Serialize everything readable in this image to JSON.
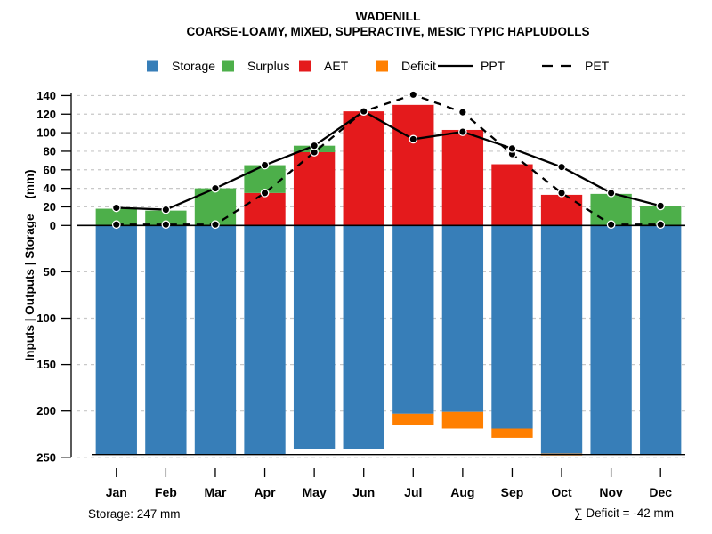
{
  "title": "WADENILL",
  "subtitle": "COARSE-LOAMY, MIXED, SUPERACTIVE, MESIC TYPIC HAPLUDOLLS",
  "y_axis": {
    "label": "Inputs | Outputs | Storage",
    "unit": "(mm)",
    "upper_ticks": [
      0,
      20,
      40,
      60,
      80,
      100,
      120,
      140
    ],
    "lower_ticks": [
      50,
      100,
      150,
      200,
      250
    ]
  },
  "legend": [
    {
      "label": "Storage",
      "swatch": "square",
      "color": "#377EB8"
    },
    {
      "label": "Surplus",
      "swatch": "square",
      "color": "#4DAF4A"
    },
    {
      "label": "AET",
      "swatch": "square",
      "color": "#E41A1C"
    },
    {
      "label": "Deficit",
      "swatch": "square",
      "color": "#FF7F00"
    },
    {
      "label": "PPT",
      "swatch": "line-solid",
      "color": "#000000"
    },
    {
      "label": "PET",
      "swatch": "line-dashed",
      "color": "#000000"
    }
  ],
  "footer": {
    "storage_note": "Storage: 247 mm",
    "deficit_note": "∑ Deficit = -42 mm"
  },
  "colors": {
    "storage": "#377EB8",
    "surplus": "#4DAF4A",
    "aet": "#E41A1C",
    "deficit": "#FF7F00",
    "line": "#000000",
    "grid": "#C8C8C8",
    "text": "#000000",
    "background": "#FFFFFF"
  },
  "chart_data": {
    "type": "bar",
    "title": "WADENILL — monthly water balance",
    "categories": [
      "Jan",
      "Feb",
      "Mar",
      "Apr",
      "May",
      "Jun",
      "Jul",
      "Aug",
      "Sep",
      "Oct",
      "Nov",
      "Dec"
    ],
    "series": [
      {
        "name": "AET",
        "role": "bar-up",
        "color": "#E41A1C",
        "values": [
          0,
          0,
          0,
          35,
          79,
          123,
          130,
          103,
          66,
          33,
          0,
          0
        ]
      },
      {
        "name": "Surplus",
        "role": "bar-up-stacked-on-AET",
        "color": "#4DAF4A",
        "values": [
          18,
          16,
          40,
          30,
          7,
          0,
          0,
          0,
          0,
          0,
          34,
          21
        ]
      },
      {
        "name": "Storage",
        "role": "bar-down",
        "color": "#377EB8",
        "values": [
          247,
          247,
          247,
          247,
          241,
          241,
          203,
          201,
          219,
          246,
          247,
          247
        ]
      },
      {
        "name": "Deficit",
        "role": "bar-down-stacked-on-Storage",
        "color": "#FF7F00",
        "values": [
          0,
          0,
          0,
          0,
          0,
          0,
          12,
          18,
          10,
          2,
          0,
          0
        ]
      },
      {
        "name": "PPT",
        "role": "line-solid",
        "color": "#000000",
        "values": [
          19,
          17,
          40,
          65,
          86,
          123,
          93,
          101,
          83,
          63,
          35,
          21
        ]
      },
      {
        "name": "PET",
        "role": "line-dashed",
        "color": "#000000",
        "values": [
          1,
          1,
          1,
          35,
          79,
          123,
          141,
          122,
          77,
          35,
          1,
          1
        ]
      }
    ],
    "upper_axis_range": [
      0,
      140
    ],
    "upper_axis_step": 20,
    "lower_axis_range": [
      0,
      250
    ],
    "lower_axis_step": 50,
    "storage_capacity_mm": 247,
    "deficit_total_mm": -42,
    "ylabel": "Inputs | Outputs | Storage (mm)",
    "grid": "dashed-horizontal",
    "legend_position": "top-center"
  }
}
